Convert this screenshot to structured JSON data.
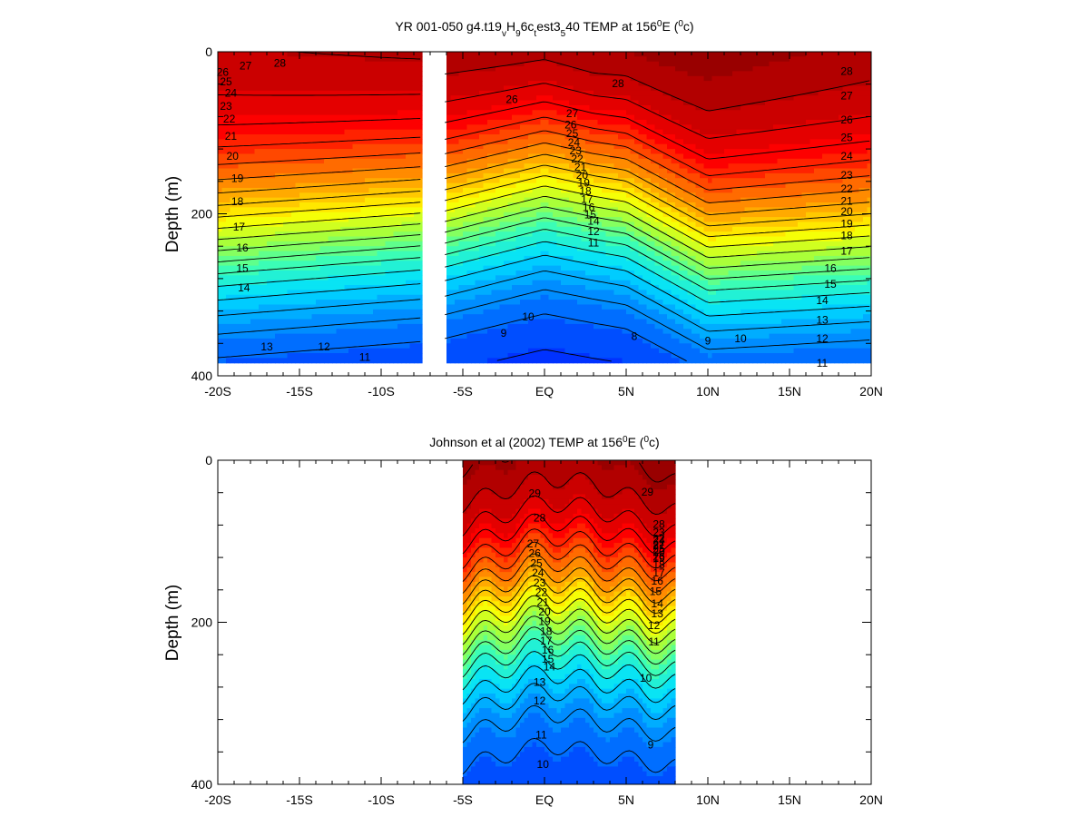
{
  "chart_data": [
    {
      "type": "heatmap",
      "title": {
        "pre": "YR 001-050 g4.t19",
        "s1": "v",
        "m1": "H",
        "s2": "9",
        "m2": "6c",
        "s3": "t",
        "m3": "est3",
        "s4": "5",
        "m4": "40 TEMP at 156",
        "sup1": "0",
        "m5": "E (",
        "sup2": "0",
        "post": "c)"
      },
      "xlabel": "",
      "ylabel": "Depth (m)",
      "x_ticks": [
        "-20S",
        "-15S",
        "-10S",
        "-5S",
        "EQ",
        "5N",
        "10N",
        "15N",
        "20N"
      ],
      "y_ticks": [
        "0",
        "200",
        "400"
      ],
      "xlim": [
        -20,
        20
      ],
      "ylim": [
        400,
        0
      ],
      "data_extent": {
        "xranges": [
          [
            -20,
            -7.5
          ],
          [
            -6.1,
            20
          ]
        ],
        "depth_max": 382
      },
      "field": {
        "sst_mid": 27.6,
        "sst_eq": 28.2,
        "sst_warm": 29.3,
        "thermocline_depth_s20": 230,
        "thermocline_depth_s7": 205,
        "thermocline_depth_eq": 165,
        "thermocline_depth_n5": 185,
        "thermocline_depth_n10": 245,
        "thermocline_depth_n20": 235,
        "deep_min_temp": 7.8
      },
      "contour_levels": [
        8,
        9,
        10,
        11,
        12,
        13,
        14,
        15,
        16,
        17,
        18,
        19,
        20,
        21,
        22,
        23,
        24,
        25,
        26,
        27,
        28
      ],
      "contour_labels": [
        {
          "text": "28",
          "x": -16.2,
          "depth": 15
        },
        {
          "text": "27",
          "x": -18.3,
          "depth": 18
        },
        {
          "text": "26",
          "x": -19.7,
          "depth": 26
        },
        {
          "text": "25",
          "x": -19.5,
          "depth": 38
        },
        {
          "text": "24",
          "x": -19.2,
          "depth": 52
        },
        {
          "text": "23",
          "x": -19.5,
          "depth": 68
        },
        {
          "text": "22",
          "x": -19.3,
          "depth": 84
        },
        {
          "text": "21",
          "x": -19.2,
          "depth": 105
        },
        {
          "text": "20",
          "x": -19.1,
          "depth": 130
        },
        {
          "text": "19",
          "x": -18.8,
          "depth": 157
        },
        {
          "text": "18",
          "x": -18.8,
          "depth": 186
        },
        {
          "text": "17",
          "x": -18.7,
          "depth": 217
        },
        {
          "text": "16",
          "x": -18.5,
          "depth": 243
        },
        {
          "text": "15",
          "x": -18.5,
          "depth": 268
        },
        {
          "text": "14",
          "x": -18.4,
          "depth": 292
        },
        {
          "text": "13",
          "x": -17.0,
          "depth": 365
        },
        {
          "text": "12",
          "x": -13.5,
          "depth": 365
        },
        {
          "text": "11",
          "x": -11.0,
          "depth": 378
        },
        {
          "text": "26",
          "x": -2.0,
          "depth": 60
        },
        {
          "text": "28",
          "x": 4.5,
          "depth": 40
        },
        {
          "text": "27",
          "x": 1.7,
          "depth": 77
        },
        {
          "text": "26",
          "x": 1.6,
          "depth": 91
        },
        {
          "text": "25",
          "x": 1.7,
          "depth": 102
        },
        {
          "text": "24",
          "x": 1.8,
          "depth": 113
        },
        {
          "text": "23",
          "x": 1.9,
          "depth": 123
        },
        {
          "text": "22",
          "x": 2.0,
          "depth": 133
        },
        {
          "text": "21",
          "x": 2.2,
          "depth": 143
        },
        {
          "text": "20",
          "x": 2.3,
          "depth": 153
        },
        {
          "text": "19",
          "x": 2.4,
          "depth": 163
        },
        {
          "text": "18",
          "x": 2.5,
          "depth": 173
        },
        {
          "text": "17",
          "x": 2.6,
          "depth": 183
        },
        {
          "text": "16",
          "x": 2.7,
          "depth": 193
        },
        {
          "text": "15",
          "x": 2.8,
          "depth": 202
        },
        {
          "text": "14",
          "x": 3.0,
          "depth": 210
        },
        {
          "text": "12",
          "x": 3.0,
          "depth": 223
        },
        {
          "text": "11",
          "x": 3.0,
          "depth": 237
        },
        {
          "text": "10",
          "x": -1.0,
          "depth": 328
        },
        {
          "text": "9",
          "x": -2.5,
          "depth": 348
        },
        {
          "text": "8",
          "x": 5.5,
          "depth": 352
        },
        {
          "text": "9",
          "x": 10.0,
          "depth": 358
        },
        {
          "text": "10",
          "x": 12.0,
          "depth": 355
        },
        {
          "text": "28",
          "x": 18.5,
          "depth": 25
        },
        {
          "text": "27",
          "x": 18.5,
          "depth": 55
        },
        {
          "text": "26",
          "x": 18.5,
          "depth": 85
        },
        {
          "text": "25",
          "x": 18.5,
          "depth": 107
        },
        {
          "text": "24",
          "x": 18.5,
          "depth": 130
        },
        {
          "text": "23",
          "x": 18.5,
          "depth": 153
        },
        {
          "text": "22",
          "x": 18.5,
          "depth": 170
        },
        {
          "text": "21",
          "x": 18.5,
          "depth": 185
        },
        {
          "text": "20",
          "x": 18.5,
          "depth": 198
        },
        {
          "text": "19",
          "x": 18.5,
          "depth": 213
        },
        {
          "text": "18",
          "x": 18.5,
          "depth": 228
        },
        {
          "text": "17",
          "x": 18.5,
          "depth": 247
        },
        {
          "text": "16",
          "x": 17.5,
          "depth": 268
        },
        {
          "text": "15",
          "x": 17.5,
          "depth": 288
        },
        {
          "text": "14",
          "x": 17.0,
          "depth": 308
        },
        {
          "text": "13",
          "x": 17.0,
          "depth": 332
        },
        {
          "text": "12",
          "x": 17.0,
          "depth": 355
        },
        {
          "text": "11",
          "x": 17.0,
          "depth": 385
        }
      ]
    },
    {
      "type": "heatmap",
      "title": {
        "pre": "Johnson et al (2002) TEMP at 156",
        "sup1": "0",
        "m1": "E (",
        "sup2": "0",
        "post": "c)"
      },
      "xlabel": "",
      "ylabel": "Depth (m)",
      "x_ticks": [
        "-20S",
        "-15S",
        "-10S",
        "-5S",
        "EQ",
        "5N",
        "10N",
        "15N",
        "20N"
      ],
      "y_ticks": [
        "0",
        "200",
        "400"
      ],
      "xlim": [
        -20,
        20
      ],
      "ylim": [
        400,
        0
      ],
      "data_extent": {
        "xranges": [
          [
            -5,
            8
          ]
        ],
        "depth_max": 400
      },
      "field": {
        "sst_mid": 29.3,
        "sst_eq": 29.0,
        "sst_warm": 29.6,
        "thermocline_depth_s5": 200,
        "thermocline_depth_eq": 170,
        "thermocline_depth_n5": 190,
        "thermocline_depth_n8": 200,
        "deep_min_temp": 8.7
      },
      "contour_levels": [
        9,
        10,
        11,
        12,
        13,
        14,
        15,
        16,
        17,
        18,
        19,
        20,
        21,
        22,
        23,
        24,
        25,
        26,
        27,
        28,
        29
      ],
      "contour_labels": [
        {
          "text": "29",
          "x": -0.6,
          "depth": 42
        },
        {
          "text": "29",
          "x": 6.3,
          "depth": 40
        },
        {
          "text": "28",
          "x": -0.3,
          "depth": 72
        },
        {
          "text": "28",
          "x": 7.0,
          "depth": 80
        },
        {
          "text": "27",
          "x": -0.7,
          "depth": 104
        },
        {
          "text": "26",
          "x": -0.6,
          "depth": 116
        },
        {
          "text": "25",
          "x": -0.5,
          "depth": 128
        },
        {
          "text": "24",
          "x": -0.4,
          "depth": 140
        },
        {
          "text": "23",
          "x": -0.3,
          "depth": 152
        },
        {
          "text": "22",
          "x": -0.2,
          "depth": 164
        },
        {
          "text": "21",
          "x": -0.1,
          "depth": 176
        },
        {
          "text": "20",
          "x": 0.0,
          "depth": 188
        },
        {
          "text": "19",
          "x": 0.0,
          "depth": 200
        },
        {
          "text": "18",
          "x": 0.1,
          "depth": 212
        },
        {
          "text": "17",
          "x": 0.1,
          "depth": 224
        },
        {
          "text": "16",
          "x": 0.2,
          "depth": 235
        },
        {
          "text": "15",
          "x": 0.2,
          "depth": 246
        },
        {
          "text": "14",
          "x": 0.3,
          "depth": 256
        },
        {
          "text": "13",
          "x": -0.3,
          "depth": 275
        },
        {
          "text": "12",
          "x": -0.3,
          "depth": 298
        },
        {
          "text": "11",
          "x": -0.2,
          "depth": 340
        },
        {
          "text": "10",
          "x": -0.1,
          "depth": 376
        },
        {
          "text": "9",
          "x": 6.5,
          "depth": 352
        },
        {
          "text": "10",
          "x": 6.2,
          "depth": 270
        },
        {
          "text": "11",
          "x": 6.7,
          "depth": 225
        },
        {
          "text": "12",
          "x": 6.7,
          "depth": 205
        },
        {
          "text": "13",
          "x": 6.9,
          "depth": 190
        },
        {
          "text": "14",
          "x": 6.9,
          "depth": 178
        },
        {
          "text": "15",
          "x": 6.8,
          "depth": 163
        },
        {
          "text": "16",
          "x": 6.9,
          "depth": 150
        },
        {
          "text": "17",
          "x": 7.0,
          "depth": 140
        },
        {
          "text": "18",
          "x": 7.0,
          "depth": 130
        },
        {
          "text": "19",
          "x": 7.0,
          "depth": 122
        },
        {
          "text": "20",
          "x": 7.0,
          "depth": 114
        },
        {
          "text": "21",
          "x": 7.0,
          "depth": 106
        },
        {
          "text": "22",
          "x": 7.0,
          "depth": 98
        },
        {
          "text": "23",
          "x": 7.0,
          "depth": 90
        },
        {
          "text": "24",
          "x": 7.0,
          "depth": 100
        },
        {
          "text": "25",
          "x": 7.0,
          "depth": 110
        },
        {
          "text": "26",
          "x": 7.0,
          "depth": 120
        },
        {
          "text": "27",
          "x": 7.0,
          "depth": 105
        }
      ]
    }
  ],
  "colormap": {
    "temp_min": 7,
    "temp_max": 30,
    "stops": [
      "#0000ff",
      "#0040ff",
      "#0090ff",
      "#00e0ff",
      "#40ffb0",
      "#a0ff40",
      "#ffff00",
      "#ffb000",
      "#ff6000",
      "#ff0000",
      "#c00000",
      "#800000"
    ]
  }
}
